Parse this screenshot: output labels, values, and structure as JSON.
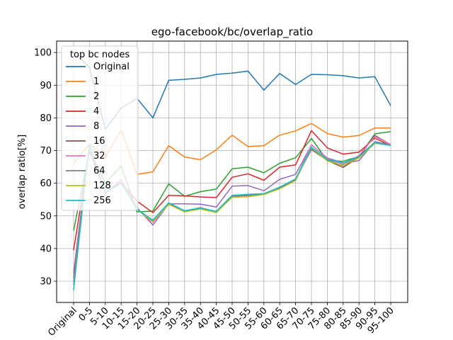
{
  "chart_data": {
    "type": "line",
    "title": "ego-facebook/bc/overlap_ratio",
    "xlabel": "",
    "ylabel": "overlap ratio[%]",
    "ylim": [
      23.5,
      103.5
    ],
    "yticks": [
      30,
      40,
      50,
      60,
      70,
      80,
      90,
      100
    ],
    "grid": true,
    "legend_title": "top bc nodes",
    "legend_position": "upper-left",
    "categories": [
      "Original",
      "0-5",
      "5-10",
      "10-15",
      "15-20",
      "20-25",
      "25-30",
      "30-35",
      "35-40",
      "40-45",
      "45-50",
      "50-55",
      "55-60",
      "60-65",
      "65-70",
      "70-75",
      "75-80",
      "80-85",
      "85-90",
      "90-95",
      "95-100"
    ],
    "series": [
      {
        "name": "Original",
        "color": "#1f77b4",
        "values": [
          100,
          95.5,
          76.5,
          83,
          86,
          80,
          91.5,
          91.8,
          92.2,
          93.3,
          93.7,
          94.3,
          88.5,
          93.6,
          90.2,
          93.3,
          93.2,
          92.9,
          92.2,
          92.6,
          83.7
        ]
      },
      {
        "name": "1",
        "color": "#ff7f0e",
        "values": [
          66,
          72,
          68,
          76.3,
          62.7,
          63.5,
          71.5,
          68,
          67.2,
          70.2,
          74.7,
          71.2,
          71.5,
          74.7,
          76,
          78.3,
          75.2,
          74.1,
          74.6,
          76.9,
          76.9
        ]
      },
      {
        "name": "2",
        "color": "#2ca02c",
        "values": [
          45.5,
          70,
          60,
          65.3,
          51.2,
          51.5,
          59.8,
          56,
          57.4,
          58.2,
          64.4,
          64.9,
          63.2,
          66.1,
          67.8,
          73.7,
          67,
          66.7,
          68.2,
          75.1,
          75.8
        ]
      },
      {
        "name": "4",
        "color": "#d62728",
        "values": [
          39.5,
          70,
          57,
          60.3,
          54.5,
          51,
          56.3,
          56.1,
          55.8,
          55.6,
          61.8,
          62.9,
          60.9,
          64.9,
          65.6,
          76.1,
          70.8,
          68.9,
          69.5,
          73.8,
          71.5
        ]
      },
      {
        "name": "8",
        "color": "#9467bd",
        "values": [
          32.5,
          72,
          57,
          61,
          52.5,
          47.2,
          53.7,
          53.7,
          53.6,
          52.7,
          59.1,
          59.3,
          57.7,
          61.2,
          62.7,
          71.7,
          67.7,
          66.2,
          66.9,
          72.7,
          71.8
        ]
      },
      {
        "name": "16",
        "color": "#8c564b",
        "values": [
          31,
          72,
          57,
          60,
          52,
          48.5,
          53.8,
          51.5,
          52.5,
          51.3,
          56.2,
          56.5,
          56.7,
          58.7,
          61.3,
          70.3,
          67,
          64.8,
          68,
          74.6,
          71.8
        ]
      },
      {
        "name": "32",
        "color": "#e377c2",
        "values": [
          30,
          72,
          57,
          60,
          52,
          48,
          53.6,
          51.5,
          52.3,
          51.2,
          56.1,
          56.4,
          56.6,
          58.6,
          61.1,
          71.8,
          67.5,
          65.8,
          68.5,
          74.3,
          71.9
        ]
      },
      {
        "name": "64",
        "color": "#7f7f7f",
        "values": [
          29,
          72,
          57,
          60,
          52,
          48.3,
          53.9,
          51.4,
          52.4,
          51.1,
          56,
          56.2,
          56.6,
          58.5,
          61,
          70.5,
          67.2,
          65.3,
          68.2,
          72.6,
          71.6
        ]
      },
      {
        "name": "128",
        "color": "#bcbd22",
        "values": [
          27.5,
          72,
          57,
          60,
          52,
          48.2,
          53.5,
          51.2,
          52.1,
          51,
          55.7,
          55.9,
          56.5,
          58.3,
          60.8,
          70.9,
          66.8,
          65.5,
          67.7,
          72.2,
          71.6
        ]
      },
      {
        "name": "256",
        "color": "#17becf",
        "values": [
          27.3,
          72,
          57,
          60,
          52,
          48.7,
          54,
          51.6,
          52.4,
          51.4,
          56.3,
          56.6,
          56.8,
          58.8,
          61.3,
          71,
          67.3,
          66.2,
          68.1,
          72.4,
          71.5
        ]
      }
    ]
  }
}
